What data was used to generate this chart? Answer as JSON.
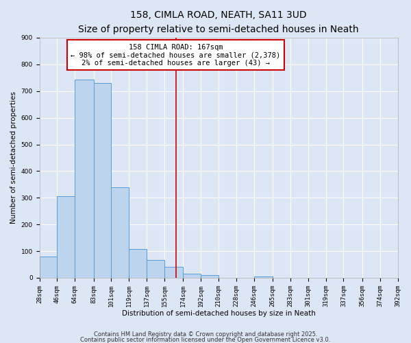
{
  "title": "158, CIMLA ROAD, NEATH, SA11 3UD",
  "subtitle": "Size of property relative to semi-detached houses in Neath",
  "xlabel": "Distribution of semi-detached houses by size in Neath",
  "ylabel": "Number of semi-detached properties",
  "bin_edges": [
    28,
    46,
    64,
    83,
    101,
    119,
    137,
    155,
    174,
    192,
    210,
    228,
    246,
    265,
    283,
    301,
    319,
    337,
    356,
    374,
    392
  ],
  "bin_labels": [
    "28sqm",
    "46sqm",
    "64sqm",
    "83sqm",
    "101sqm",
    "119sqm",
    "137sqm",
    "155sqm",
    "174sqm",
    "192sqm",
    "210sqm",
    "228sqm",
    "246sqm",
    "265sqm",
    "283sqm",
    "301sqm",
    "319sqm",
    "337sqm",
    "356sqm",
    "374sqm",
    "392sqm"
  ],
  "counts": [
    80,
    305,
    743,
    730,
    340,
    108,
    68,
    40,
    15,
    10,
    0,
    0,
    5,
    0,
    0,
    0,
    0,
    0,
    0,
    0
  ],
  "bar_color": "#bdd4ee",
  "bar_edge_color": "#5b9bd5",
  "background_color": "#dce6f5",
  "grid_color": "#ffffff",
  "vline_x": 167,
  "vline_color": "#cc0000",
  "annotation_text": "158 CIMLA ROAD: 167sqm\n← 98% of semi-detached houses are smaller (2,378)\n2% of semi-detached houses are larger (43) →",
  "annotation_box_color": "#cc0000",
  "ylim": [
    0,
    900
  ],
  "yticks": [
    0,
    100,
    200,
    300,
    400,
    500,
    600,
    700,
    800,
    900
  ],
  "footer_line1": "Contains HM Land Registry data © Crown copyright and database right 2025.",
  "footer_line2": "Contains public sector information licensed under the Open Government Licence v3.0.",
  "title_fontsize": 10,
  "subtitle_fontsize": 8.5,
  "axis_label_fontsize": 7.5,
  "tick_fontsize": 6.5,
  "annotation_fontsize": 7.5,
  "footer_fontsize": 6
}
